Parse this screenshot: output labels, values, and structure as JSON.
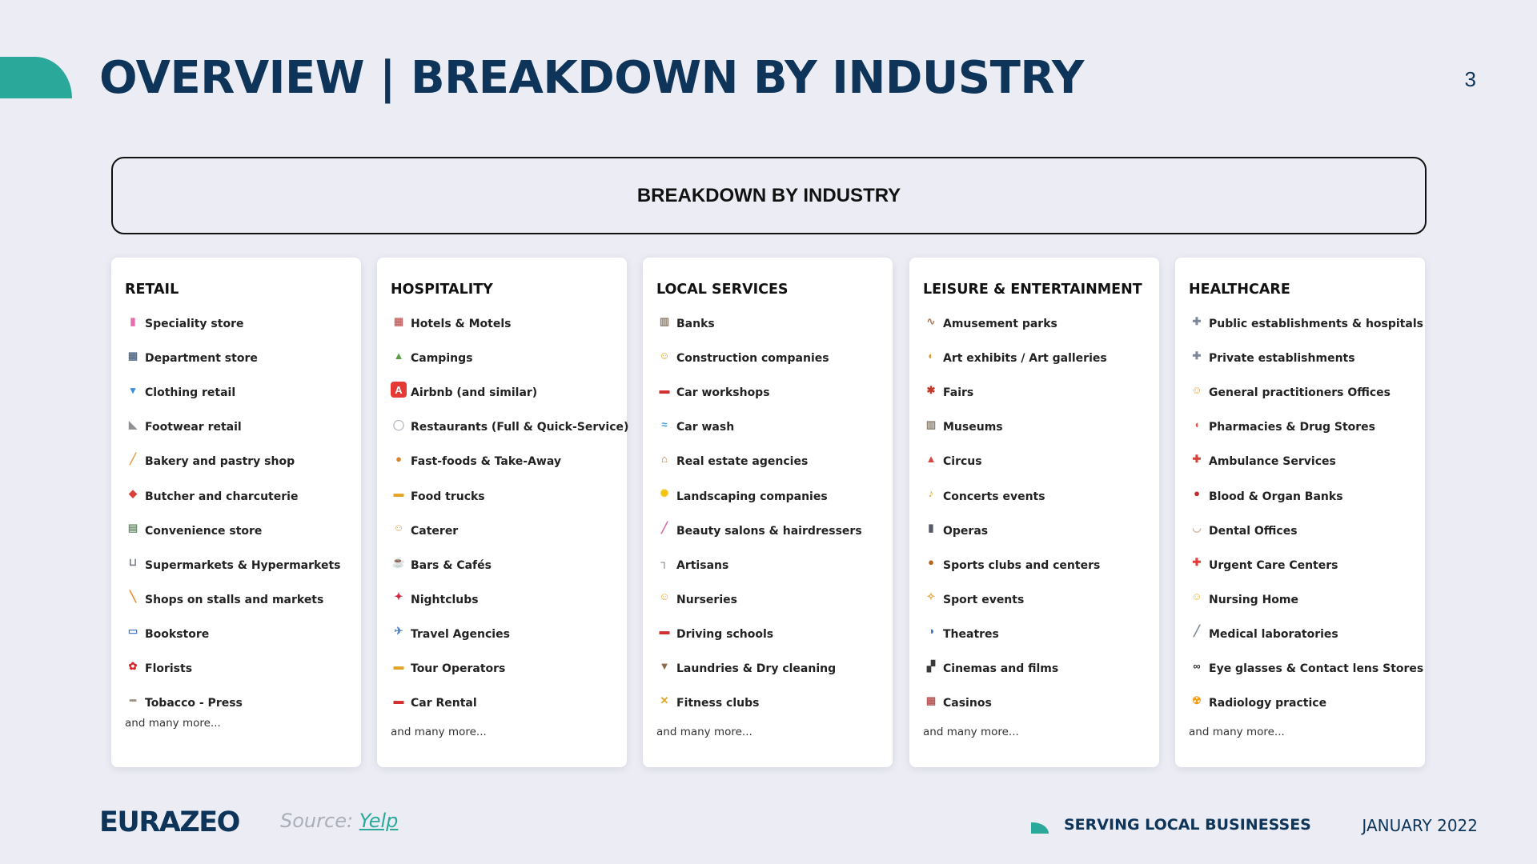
{
  "header": {
    "title": "OVERVIEW |  BREAKDOWN BY INDUSTRY",
    "page_number": "3"
  },
  "banner": {
    "title": "BREAKDOWN BY INDUSTRY"
  },
  "columns": [
    {
      "title": "RETAIL",
      "more": "and many more...",
      "items": [
        {
          "label": "Speciality store",
          "icon": "shopping-bags-icon",
          "glyph": "▮",
          "color": "#E96BB0"
        },
        {
          "label": "Department store",
          "icon": "department-store-icon",
          "glyph": "▦",
          "color": "#5A6E8C"
        },
        {
          "label": "Clothing retail",
          "icon": "t-shirt-icon",
          "glyph": "▾",
          "color": "#3D8FE0"
        },
        {
          "label": "Footwear retail",
          "icon": "shoe-icon",
          "glyph": "◣",
          "color": "#8E8E93"
        },
        {
          "label": "Bakery and pastry shop",
          "icon": "baguette-icon",
          "glyph": "╱",
          "color": "#E3A04F"
        },
        {
          "label": "Butcher and charcuterie",
          "icon": "meat-icon",
          "glyph": "◆",
          "color": "#D9403A"
        },
        {
          "label": "Convenience store",
          "icon": "convenience-store-icon",
          "glyph": "▤",
          "color": "#6F8F6F"
        },
        {
          "label": "Supermarkets & Hypermarkets",
          "icon": "shopping-cart-icon",
          "glyph": "⊔",
          "color": "#7A7F8A"
        },
        {
          "label": "Shops on stalls and markets",
          "icon": "carrot-icon",
          "glyph": "╲",
          "color": "#F08A24"
        },
        {
          "label": "Bookstore",
          "icon": "open-book-icon",
          "glyph": "▭",
          "color": "#4A7BC8"
        },
        {
          "label": "Florists",
          "icon": "rose-icon",
          "glyph": "✿",
          "color": "#D4262B"
        },
        {
          "label": "Tobacco - Press",
          "icon": "cigarette-icon",
          "glyph": "━",
          "color": "#9A8F80"
        }
      ]
    },
    {
      "title": "HOSPITALITY",
      "more": "and many more...",
      "items": [
        {
          "label": "Hotels & Motels",
          "icon": "hotel-icon",
          "glyph": "▦",
          "color": "#C76A6A"
        },
        {
          "label": "Campings",
          "icon": "tent-icon",
          "glyph": "▲",
          "color": "#5B9E45"
        },
        {
          "label": "Airbnb (and similar)",
          "icon": "airbnb-icon",
          "glyph": "A",
          "color": "#E53935"
        },
        {
          "label": "Restaurants (Full & Quick-Service)",
          "icon": "fork-knife-plate-icon",
          "glyph": "◯",
          "color": "#B8BEC8"
        },
        {
          "label": "Fast-foods & Take-Away",
          "icon": "burger-icon",
          "glyph": "●",
          "color": "#D9852A"
        },
        {
          "label": "Food trucks",
          "icon": "delivery-truck-icon",
          "glyph": "▬",
          "color": "#E5A323"
        },
        {
          "label": "Caterer",
          "icon": "cook-icon",
          "glyph": "☺",
          "color": "#D8B06A"
        },
        {
          "label": "Bars & Cafés",
          "icon": "coffee-cup-icon",
          "glyph": "☕",
          "color": "#7A6A5A"
        },
        {
          "label": "Nightclubs",
          "icon": "dancer-icon",
          "glyph": "✦",
          "color": "#D7263D"
        },
        {
          "label": "Travel Agencies",
          "icon": "airplane-icon",
          "glyph": "✈",
          "color": "#4E86C9"
        },
        {
          "label": "Tour Operators",
          "icon": "bus-icon",
          "glyph": "▬",
          "color": "#E0A426"
        },
        {
          "label": "Car Rental",
          "icon": "car-icon",
          "glyph": "▬",
          "color": "#D32F2F"
        }
      ]
    },
    {
      "title": "LOCAL SERVICES",
      "more": "and many more...",
      "items": [
        {
          "label": "Banks",
          "icon": "bank-icon",
          "glyph": "▥",
          "color": "#8C8170"
        },
        {
          "label": "Construction companies",
          "icon": "construction-worker-icon",
          "glyph": "☺",
          "color": "#E5A323"
        },
        {
          "label": "Car workshops",
          "icon": "car-icon",
          "glyph": "▬",
          "color": "#D32F2F"
        },
        {
          "label": "Car wash",
          "icon": "water-droplets-icon",
          "glyph": "≈",
          "color": "#3D9BE9"
        },
        {
          "label": "Real estate agencies",
          "icon": "house-icon",
          "glyph": "⌂",
          "color": "#C2703D"
        },
        {
          "label": "Landscaping companies",
          "icon": "sunflower-icon",
          "glyph": "✺",
          "color": "#F1C40F"
        },
        {
          "label": "Beauty salons & hairdressers",
          "icon": "nail-polish-icon",
          "glyph": "╱",
          "color": "#D96AA5"
        },
        {
          "label": "Artisans",
          "icon": "hammer-icon",
          "glyph": "┐",
          "color": "#6D6D6D"
        },
        {
          "label": "Nurseries",
          "icon": "baby-face-icon",
          "glyph": "☺",
          "color": "#F0B43A"
        },
        {
          "label": "Driving schools",
          "icon": "racing-car-icon",
          "glyph": "▬",
          "color": "#D32F2F"
        },
        {
          "label": "Laundries & Dry cleaning",
          "icon": "laundry-basket-icon",
          "glyph": "▼",
          "color": "#8A6A4A"
        },
        {
          "label": "Fitness clubs",
          "icon": "weightlifter-icon",
          "glyph": "✕",
          "color": "#E0A426"
        }
      ]
    },
    {
      "title": "LEISURE & ENTERTAINMENT",
      "more": "and many more...",
      "items": [
        {
          "label": "Amusement parks",
          "icon": "roller-coaster-icon",
          "glyph": "∿",
          "color": "#B07A5A"
        },
        {
          "label": "Art exhibits / Art galleries",
          "icon": "artist-palette-icon",
          "glyph": "◐",
          "color": "#D89A3A"
        },
        {
          "label": "Fairs",
          "icon": "ferris-wheel-icon",
          "glyph": "✱",
          "color": "#C0392B"
        },
        {
          "label": "Museums",
          "icon": "museum-icon",
          "glyph": "▥",
          "color": "#8C8170"
        },
        {
          "label": "Circus",
          "icon": "circus-tent-icon",
          "glyph": "▲",
          "color": "#D64541"
        },
        {
          "label": "Concerts events",
          "icon": "saxophone-icon",
          "glyph": "♪",
          "color": "#D9A521"
        },
        {
          "label": "Operas",
          "icon": "microphone-icon",
          "glyph": "▮",
          "color": "#555B66"
        },
        {
          "label": "Sports clubs and centers",
          "icon": "rugby-ball-icon",
          "glyph": "●",
          "color": "#B5651D"
        },
        {
          "label": "Sport events",
          "icon": "runner-icon",
          "glyph": "✧",
          "color": "#E6A640"
        },
        {
          "label": "Theatres",
          "icon": "theater-masks-icon",
          "glyph": "◑",
          "color": "#3C6FC4"
        },
        {
          "label": "Cinemas and films",
          "icon": "clapper-board-icon",
          "glyph": "▞",
          "color": "#3A3A3A"
        },
        {
          "label": "Casinos",
          "icon": "casino-building-icon",
          "glyph": "▦",
          "color": "#B85A5A"
        }
      ]
    },
    {
      "title": "HEALTHCARE",
      "more": "and many more...",
      "items": [
        {
          "label": "Public establishments & hospitals",
          "icon": "hospital-icon",
          "glyph": "✚",
          "color": "#7C8799"
        },
        {
          "label": "Private establishments",
          "icon": "hospital-icon",
          "glyph": "✚",
          "color": "#7C8799"
        },
        {
          "label": "General practitioners Offices",
          "icon": "doctor-icon",
          "glyph": "☺",
          "color": "#E6A640"
        },
        {
          "label": "Pharmacies & Drug Stores",
          "icon": "pill-icon",
          "glyph": "◖",
          "color": "#E2574C"
        },
        {
          "label": "Ambulance Services",
          "icon": "ambulance-icon",
          "glyph": "✚",
          "color": "#D9403A"
        },
        {
          "label": "Blood & Organ Banks",
          "icon": "blood-drop-icon",
          "glyph": "●",
          "color": "#C62828"
        },
        {
          "label": "Dental Offices",
          "icon": "tooth-icon",
          "glyph": "◡",
          "color": "#C9B79C"
        },
        {
          "label": "Urgent Care Centers",
          "icon": "emergency-siren-icon",
          "glyph": "✚",
          "color": "#E53935"
        },
        {
          "label": "Nursing Home",
          "icon": "elderly-person-icon",
          "glyph": "☺",
          "color": "#F0B43A"
        },
        {
          "label": "Medical laboratories",
          "icon": "syringe-icon",
          "glyph": "╱",
          "color": "#7C8799"
        },
        {
          "label": "Eye glasses & Contact lens Stores",
          "icon": "glasses-icon",
          "glyph": "∞",
          "color": "#333333"
        },
        {
          "label": "Radiology practice",
          "icon": "radioactive-icon",
          "glyph": "☢",
          "color": "#F39C12"
        }
      ]
    }
  ],
  "footer": {
    "logo": "EURAZEO",
    "source_label": "Source:",
    "source_link": "Yelp",
    "tagline": "SERVING LOCAL BUSINESSES",
    "date": "JANUARY 2022"
  }
}
